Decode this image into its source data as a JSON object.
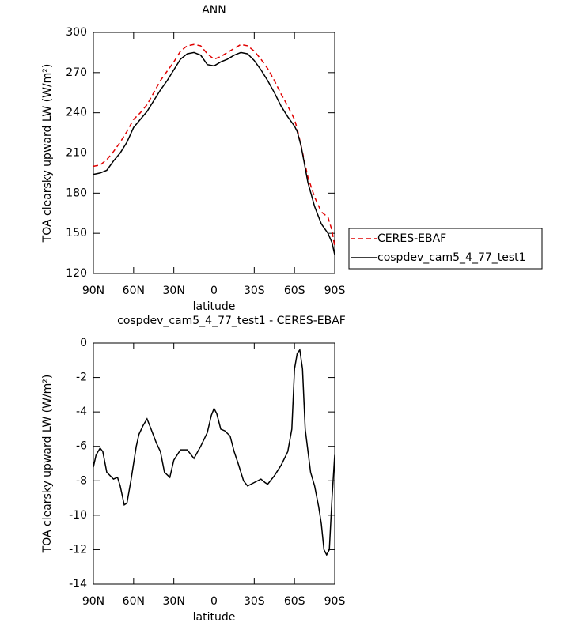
{
  "chart_data": [
    {
      "type": "line",
      "title": "ANN",
      "xlabel": "latitude",
      "ylabel": "TOA clearsky upward LW (W/m²)",
      "x": [
        90,
        85,
        80,
        75,
        70,
        65,
        60,
        55,
        50,
        45,
        40,
        35,
        30,
        25,
        20,
        15,
        10,
        5,
        0,
        -5,
        -10,
        -15,
        -20,
        -25,
        -30,
        -35,
        -40,
        -45,
        -50,
        -55,
        -60,
        -62,
        -65,
        -70,
        -75,
        -80,
        -85,
        -88,
        -90
      ],
      "series": [
        {
          "name": "CERES-EBAF",
          "color": "#e00000",
          "linestyle": "dashed",
          "values": [
            200,
            201,
            205,
            211,
            218,
            226,
            235,
            240,
            246,
            255,
            264,
            271,
            278,
            286,
            290,
            291,
            290,
            284,
            280,
            282,
            285,
            288,
            291,
            290,
            286,
            280,
            273,
            264,
            254,
            245,
            235,
            228,
            215,
            192,
            177,
            166,
            162,
            152,
            140
          ]
        },
        {
          "name": "cospdev_cam5_4_77_test1",
          "color": "#000000",
          "linestyle": "solid",
          "values": [
            194,
            195,
            197,
            204,
            210,
            218,
            229,
            235,
            241,
            249,
            257,
            264,
            272,
            280,
            284,
            285,
            283,
            276,
            275,
            278,
            280,
            283,
            285,
            284,
            279,
            272,
            264,
            255,
            245,
            237,
            230,
            226,
            215,
            188,
            170,
            157,
            150,
            143,
            134
          ]
        }
      ],
      "xlim": [
        90,
        -90
      ],
      "xticks": [
        {
          "value": 90,
          "label": "90N"
        },
        {
          "value": 60,
          "label": "60N"
        },
        {
          "value": 30,
          "label": "30N"
        },
        0,
        {
          "value": -30,
          "label": "30S"
        },
        {
          "value": -60,
          "label": "60S"
        },
        {
          "value": -90,
          "label": "90S"
        }
      ],
      "ylim": [
        120,
        300
      ],
      "yticks": [
        120,
        150,
        180,
        210,
        240,
        270,
        300
      ],
      "legend": "right"
    },
    {
      "type": "line",
      "title": "cospdev_cam5_4_77_test1 - CERES-EBAF",
      "xlabel": "latitude",
      "ylabel": "TOA clearsky upward LW (W/m²)",
      "x": [
        90,
        88,
        85,
        83,
        80,
        75,
        72,
        70,
        67,
        65,
        62,
        58,
        56,
        53,
        50,
        47,
        43,
        40,
        37,
        33,
        30,
        25,
        20,
        15,
        10,
        5,
        2,
        0,
        -2,
        -5,
        -8,
        -12,
        -15,
        -18,
        -22,
        -25,
        -30,
        -35,
        -38,
        -40,
        -45,
        -50,
        -55,
        -58,
        -60,
        -62,
        -64,
        -66,
        -68,
        -72,
        -75,
        -78,
        -80,
        -82,
        -84,
        -86,
        -88,
        -90
      ],
      "series": [
        {
          "color": "#000000",
          "linestyle": "solid",
          "values": [
            -7.2,
            -6.5,
            -6.1,
            -6.3,
            -7.5,
            -7.9,
            -7.8,
            -8.3,
            -9.4,
            -9.3,
            -8.0,
            -6.0,
            -5.3,
            -4.8,
            -4.4,
            -5.0,
            -5.8,
            -6.3,
            -7.5,
            -7.8,
            -6.8,
            -6.2,
            -6.2,
            -6.7,
            -6.0,
            -5.2,
            -4.2,
            -3.8,
            -4.1,
            -5.0,
            -5.1,
            -5.4,
            -6.3,
            -7.0,
            -8.0,
            -8.3,
            -8.1,
            -7.9,
            -8.1,
            -8.2,
            -7.7,
            -7.1,
            -6.3,
            -5.0,
            -1.5,
            -0.6,
            -0.4,
            -1.5,
            -5.0,
            -7.5,
            -8.3,
            -9.5,
            -10.5,
            -12.0,
            -12.3,
            -12.0,
            -9.0,
            -6.5
          ]
        }
      ],
      "xlim": [
        90,
        -90
      ],
      "xticks": [
        {
          "value": 90,
          "label": "90N"
        },
        {
          "value": 60,
          "label": "60N"
        },
        {
          "value": 30,
          "label": "30N"
        },
        0,
        {
          "value": -30,
          "label": "30S"
        },
        {
          "value": -60,
          "label": "60S"
        },
        {
          "value": -90,
          "label": "90S"
        }
      ],
      "ylim": [
        -14,
        0
      ],
      "yticks": [
        -14,
        -12,
        -10,
        -8,
        -6,
        -4,
        -2,
        0
      ]
    }
  ]
}
